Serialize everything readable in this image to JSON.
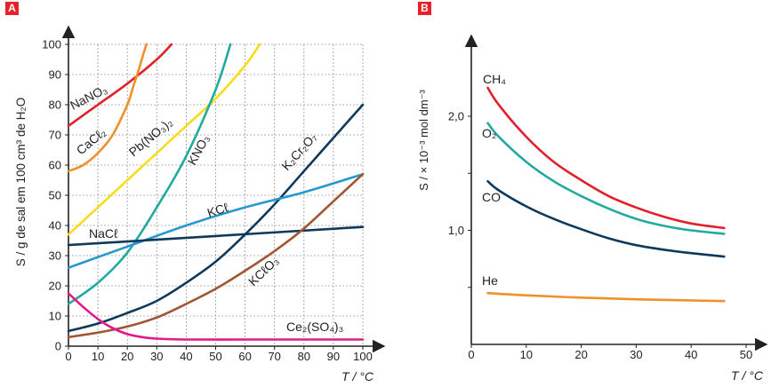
{
  "badge_color": "#e8202a",
  "chart_data": [
    {
      "id": "A",
      "badge": "A",
      "type": "line",
      "xlabel": "T / °C",
      "ylabel": "S / g de sal em 100 cm³ de H₂O",
      "xlim": [
        0,
        100
      ],
      "ylim": [
        0,
        100
      ],
      "xticks": [
        0,
        10,
        20,
        30,
        40,
        50,
        60,
        70,
        80,
        90,
        100
      ],
      "yticks": [
        0,
        10,
        20,
        30,
        40,
        50,
        60,
        70,
        80,
        90,
        100
      ],
      "grid": true,
      "series": [
        {
          "name": "NaNO₃",
          "color": "#e12129",
          "x": [
            0,
            10,
            20,
            30,
            35
          ],
          "y": [
            73,
            80,
            87,
            95,
            100
          ]
        },
        {
          "name": "CaCℓ₂",
          "color": "#f0902a",
          "x": [
            0,
            5,
            10,
            15,
            20,
            22,
            24,
            25.5,
            26.5
          ],
          "y": [
            58,
            60,
            64,
            70,
            80,
            86,
            92,
            97,
            100
          ]
        },
        {
          "name": "Pb(NO₃)₂",
          "color": "#f7dc1e",
          "x": [
            0,
            10,
            20,
            30,
            40,
            50,
            60,
            65
          ],
          "y": [
            37,
            46,
            55,
            64,
            73,
            82,
            93,
            100
          ]
        },
        {
          "name": "KNO₃",
          "color": "#21aa9e",
          "x": [
            0,
            10,
            20,
            30,
            40,
            50,
            55
          ],
          "y": [
            14,
            21,
            31,
            46,
            63,
            85,
            100
          ]
        },
        {
          "name": "K₂Cr₂O₇",
          "color": "#0d3a5c",
          "x": [
            0,
            10,
            20,
            30,
            40,
            50,
            60,
            70,
            80,
            90,
            100
          ],
          "y": [
            5,
            7.5,
            11,
            15,
            21,
            28,
            37,
            47,
            58,
            69,
            80
          ]
        },
        {
          "name": "KCℓ",
          "color": "#2698d0",
          "x": [
            0,
            20,
            40,
            60,
            80,
            100
          ],
          "y": [
            26,
            33,
            40,
            46,
            51,
            57
          ]
        },
        {
          "name": "NaCℓ",
          "color": "#0d3a5c",
          "x": [
            0,
            50,
            100
          ],
          "y": [
            33.5,
            36.5,
            39.5
          ]
        },
        {
          "name": "KCℓO₃",
          "color": "#a05533",
          "x": [
            0,
            10,
            20,
            30,
            40,
            50,
            60,
            70,
            80,
            90,
            100
          ],
          "y": [
            3,
            4.5,
            6.5,
            9.5,
            14,
            19,
            25,
            31.5,
            39,
            48,
            57
          ]
        },
        {
          "name": "Ce₂(SO₄)₃",
          "color": "#e01a8a",
          "x": [
            0,
            5,
            10,
            15,
            20,
            25,
            30,
            40,
            60,
            80,
            100
          ],
          "y": [
            17.5,
            13,
            9,
            6,
            4,
            3,
            2.5,
            2.2,
            2.2,
            2.2,
            2.2
          ]
        }
      ]
    },
    {
      "id": "B",
      "badge": "B",
      "type": "line",
      "xlabel": "T / °C",
      "ylabel": "S / × 10⁻³ mol dm⁻³",
      "xlim": [
        0,
        50
      ],
      "ylim": [
        0,
        2.5
      ],
      "xticks": [
        0,
        10,
        20,
        30,
        40,
        50
      ],
      "yticks": [
        1.0,
        2.0
      ],
      "ytick_labels": [
        "1,0",
        "2,0"
      ],
      "grid": false,
      "series": [
        {
          "name": "CH₄",
          "color": "#e12129",
          "x": [
            3,
            5,
            10,
            15,
            20,
            25,
            30,
            35,
            40,
            46
          ],
          "y": [
            2.25,
            2.1,
            1.82,
            1.6,
            1.44,
            1.3,
            1.2,
            1.12,
            1.06,
            1.02
          ]
        },
        {
          "name": "O₂",
          "color": "#21aa9e",
          "x": [
            3,
            5,
            10,
            15,
            20,
            25,
            30,
            35,
            40,
            46
          ],
          "y": [
            1.94,
            1.82,
            1.6,
            1.43,
            1.3,
            1.19,
            1.1,
            1.04,
            1.0,
            0.97
          ]
        },
        {
          "name": "CO",
          "color": "#0d3a5c",
          "x": [
            3,
            5,
            10,
            15,
            20,
            25,
            30,
            35,
            40,
            46
          ],
          "y": [
            1.43,
            1.35,
            1.21,
            1.1,
            1.01,
            0.93,
            0.87,
            0.83,
            0.8,
            0.77
          ]
        },
        {
          "name": "He",
          "color": "#f0902a",
          "x": [
            3,
            10,
            20,
            30,
            40,
            46
          ],
          "y": [
            0.45,
            0.43,
            0.41,
            0.395,
            0.385,
            0.38
          ]
        }
      ]
    }
  ]
}
